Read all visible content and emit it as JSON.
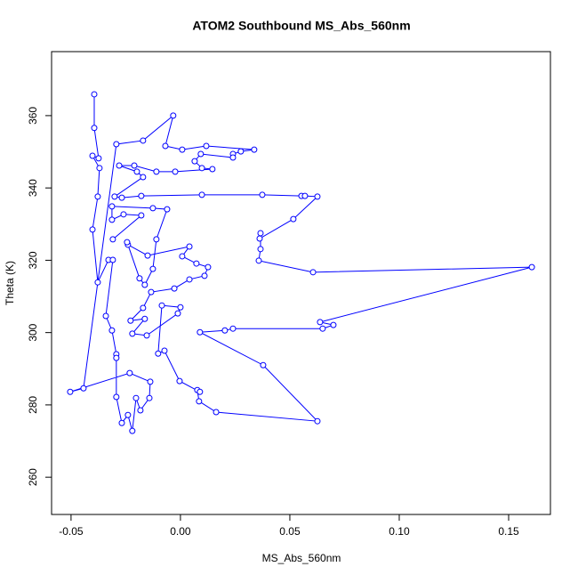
{
  "chart_data": {
    "type": "line",
    "title": "ATOM2 Southbound MS_Abs_560nm",
    "x_label": "MS_Abs_560nm",
    "y_label": "Theta (K)",
    "color": "#0000ff",
    "markers": true,
    "xlim": [
      -0.0589,
      0.1691
    ],
    "ylim": [
      249.7,
      377.7
    ],
    "xticks": [
      -0.05,
      {
        "value": 0,
        "label": "0.00"
      },
      0.05,
      {
        "value": 0.1,
        "label": "0.10"
      },
      0.15
    ],
    "yticks": [
      260,
      280,
      300,
      320,
      340,
      360
    ],
    "x": [
      -0.0394,
      -0.0394,
      -0.0374,
      -0.0402,
      -0.037,
      -0.0378,
      -0.0402,
      -0.0378,
      -0.0329,
      -0.0309,
      -0.0341,
      -0.0313,
      -0.0293,
      -0.0293,
      -0.0293,
      -0.0268,
      -0.024,
      -0.022,
      -0.0203,
      -0.0183,
      -0.0142,
      -0.0138,
      -0.0232,
      -0.0504,
      -0.0443,
      -0.0293,
      -0.0171,
      -0.0033,
      -0.0069,
      0.0008,
      0.0118,
      0.0337,
      0.0276,
      0.024,
      0.024,
      0.0093,
      0.0065,
      0.0098,
      0.0146,
      -0.0024,
      -0.011,
      -0.0211,
      -0.028,
      -0.0199,
      -0.0171,
      -0.0301,
      -0.0268,
      -0.0179,
      0.0098,
      0.0374,
      0.0553,
      0.0569,
      0.0626,
      0.0516,
      0.0362,
      0.0366,
      0.0366,
      0.0358,
      0.0606,
      0.1606,
      0.0638,
      0.0699,
      0.065,
      0.024,
      0.0203,
      0.0089,
      0.0378,
      0.0626,
      0.0163,
      0.0085,
      0.0077,
      0.0089,
      -0.0004,
      -0.0073,
      -0.0102,
      -0.0085,
      0,
      -0.0012,
      -0.0154,
      -0.022,
      -0.0163,
      -0.0228,
      -0.0171,
      -0.0134,
      -0.0028,
      0.0041,
      0.011,
      0.0126,
      0.0073,
      0.0008,
      0.0041,
      -0.015,
      -0.024,
      -0.0244,
      -0.0187,
      -0.0163,
      -0.0126,
      -0.011,
      -0.0061,
      -0.0126,
      -0.0313,
      -0.0313,
      -0.026,
      -0.0179,
      -0.0309
    ],
    "values": [
      365.9,
      356.6,
      348.2,
      348.9,
      345.5,
      337.6,
      328.5,
      313.9,
      320.1,
      320.1,
      304.6,
      300.6,
      294.0,
      293.0,
      282.2,
      275.0,
      277.2,
      272.8,
      281.9,
      278.5,
      281.9,
      286.4,
      288.8,
      283.6,
      284.6,
      352.1,
      353.1,
      360.0,
      351.6,
      350.6,
      351.6,
      350.6,
      350.1,
      349.4,
      348.4,
      349.4,
      347.4,
      345.5,
      345.2,
      344.5,
      344.5,
      346.2,
      346.2,
      344.5,
      343.0,
      337.6,
      337.3,
      337.8,
      338.1,
      338.1,
      337.8,
      337.8,
      337.6,
      331.4,
      326.0,
      327.5,
      323.1,
      319.9,
      316.7,
      318.1,
      302.9,
      302.1,
      301.1,
      301.1,
      300.6,
      300.1,
      291.0,
      275.5,
      278.0,
      281.0,
      284.1,
      283.6,
      286.6,
      295.0,
      294.2,
      307.5,
      307.0,
      305.3,
      299.2,
      299.7,
      303.8,
      303.3,
      306.8,
      311.2,
      312.2,
      314.7,
      315.7,
      318.1,
      319.1,
      321.1,
      323.8,
      321.3,
      324.3,
      325.0,
      315.0,
      313.2,
      317.6,
      325.8,
      334.1,
      334.4,
      334.9,
      331.2,
      332.7,
      332.4,
      325.8
    ]
  }
}
